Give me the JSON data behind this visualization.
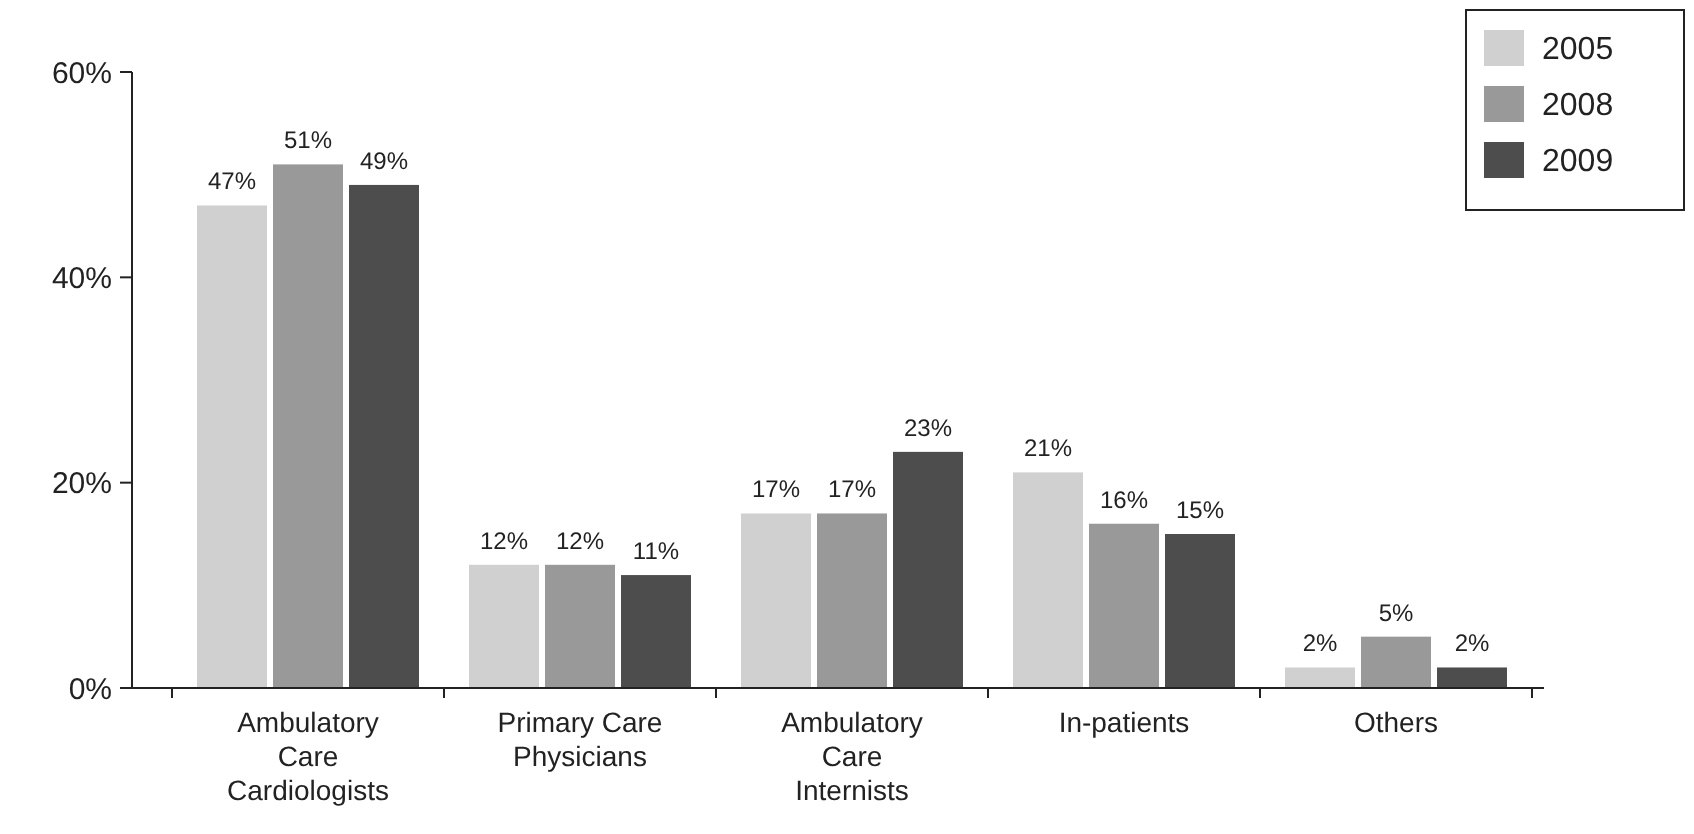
{
  "chart_data": {
    "type": "bar",
    "categories": [
      "Ambulatory Care Cardiologists",
      "Primary Care Physicians",
      "Ambulatory Care Internists",
      "In-patients",
      "Others"
    ],
    "series": [
      {
        "name": "2005",
        "color": "#d0d0d0",
        "values": [
          47,
          12,
          17,
          21,
          2
        ],
        "value_labels": [
          "47%",
          "12%",
          "17%",
          "21%",
          "2%"
        ]
      },
      {
        "name": "2008",
        "color": "#999999",
        "values": [
          51,
          12,
          17,
          16,
          5
        ],
        "value_labels": [
          "51%",
          "12%",
          "17%",
          "16%",
          "5%"
        ]
      },
      {
        "name": "2009",
        "color": "#4d4d4d",
        "values": [
          49,
          11,
          23,
          15,
          2
        ],
        "value_labels": [
          "49%",
          "11%",
          "23%",
          "15%",
          "2%"
        ]
      }
    ],
    "ylim": [
      0,
      60
    ],
    "yticks": [
      {
        "value": 0,
        "label": "0%"
      },
      {
        "value": 20,
        "label": "20%"
      },
      {
        "value": 40,
        "label": "40%"
      },
      {
        "value": 60,
        "label": "60%"
      }
    ],
    "legend": "top right"
  }
}
